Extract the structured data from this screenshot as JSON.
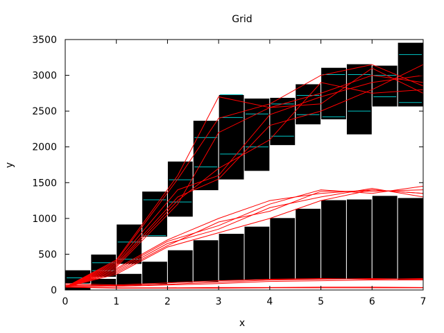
{
  "chart_data": {
    "type": "line",
    "title": "Grid",
    "xlabel": "x",
    "ylabel": "y",
    "xlim": [
      0,
      7
    ],
    "ylim": [
      0,
      3500
    ],
    "xticks": [
      "0",
      "1",
      "2",
      "3",
      "4",
      "5",
      "6",
      "7"
    ],
    "yticks": [
      "0",
      "500",
      "1000",
      "1500",
      "2000",
      "2500",
      "3000",
      "3500"
    ],
    "grid": true,
    "colors": {
      "background_bars": "#000000",
      "grid_minor": "#00c8c8",
      "series": "#ff0000",
      "bar_edge": "#ffffff"
    },
    "bars": {
      "width": 0.5,
      "columns": [
        {
          "x": 0.0,
          "segments": [
            [
              0,
              40
            ],
            [
              90,
              280
            ]
          ]
        },
        {
          "x": 0.5,
          "segments": [
            [
              60,
              160
            ],
            [
              180,
              500
            ]
          ]
        },
        {
          "x": 1.0,
          "segments": [
            [
              60,
              230
            ],
            [
              360,
              920
            ]
          ]
        },
        {
          "x": 1.5,
          "segments": [
            [
              80,
              400
            ],
            [
              740,
              1380
            ]
          ]
        },
        {
          "x": 2.0,
          "segments": [
            [
              100,
              560
            ],
            [
              1020,
              1800
            ]
          ]
        },
        {
          "x": 2.5,
          "segments": [
            [
              110,
              700
            ],
            [
              1390,
              2370
            ]
          ]
        },
        {
          "x": 3.0,
          "segments": [
            [
              130,
              790
            ],
            [
              1540,
              2730
            ]
          ]
        },
        {
          "x": 3.5,
          "segments": [
            [
              140,
              890
            ],
            [
              1660,
              2680
            ]
          ]
        },
        {
          "x": 4.0,
          "segments": [
            [
              140,
              1010
            ],
            [
              2020,
              2690
            ]
          ]
        },
        {
          "x": 4.5,
          "segments": [
            [
              140,
              1140
            ],
            [
              2310,
              2880
            ]
          ]
        },
        {
          "x": 5.0,
          "segments": [
            [
              150,
              1260
            ],
            [
              2380,
              3110
            ]
          ]
        },
        {
          "x": 5.5,
          "segments": [
            [
              150,
              1270
            ],
            [
              2170,
              3160
            ]
          ]
        },
        {
          "x": 6.0,
          "segments": [
            [
              150,
              1320
            ],
            [
              2560,
              3140
            ]
          ]
        },
        {
          "x": 6.5,
          "segments": [
            [
              140,
              1290
            ],
            [
              2560,
              3460
            ]
          ]
        }
      ]
    },
    "grid_marks": [
      {
        "x": 0.0,
        "y": [
          90,
          170
        ]
      },
      {
        "x": 0.5,
        "y": [
          270,
          380
        ]
      },
      {
        "x": 1.0,
        "y": [
          430,
          670
        ]
      },
      {
        "x": 1.5,
        "y": [
          760,
          1260
        ]
      },
      {
        "x": 2.0,
        "y": [
          1230,
          1540
        ]
      },
      {
        "x": 2.5,
        "y": [
          1720,
          2130
        ]
      },
      {
        "x": 3.0,
        "y": [
          1900,
          2410,
          2730
        ]
      },
      {
        "x": 3.5,
        "y": [
          2000,
          2460
        ]
      },
      {
        "x": 4.0,
        "y": [
          2150,
          2600
        ]
      },
      {
        "x": 4.5,
        "y": [
          2450,
          2720
        ]
      },
      {
        "x": 5.0,
        "y": [
          2420,
          3010
        ]
      },
      {
        "x": 5.5,
        "y": [
          2500,
          3010
        ]
      },
      {
        "x": 6.0,
        "y": [
          2700,
          3000
        ]
      },
      {
        "x": 6.5,
        "y": [
          2620,
          3290
        ]
      }
    ],
    "series": [
      {
        "x": [
          0,
          1,
          2.2,
          3,
          4,
          5,
          6,
          7
        ],
        "values": [
          40,
          420,
          1600,
          2700,
          2550,
          2750,
          3000,
          2900
        ]
      },
      {
        "x": [
          0,
          1,
          2.2,
          3,
          4,
          5,
          6,
          7
        ],
        "values": [
          40,
          400,
          1550,
          2400,
          2600,
          3000,
          3150,
          2850
        ]
      },
      {
        "x": [
          0,
          1,
          2.2,
          3,
          4,
          5,
          6,
          7
        ],
        "values": [
          40,
          380,
          1400,
          1600,
          2450,
          2700,
          2900,
          3000
        ]
      },
      {
        "x": [
          0,
          1,
          2.2,
          3,
          4,
          5,
          6,
          7
        ],
        "values": [
          40,
          360,
          1300,
          1550,
          2300,
          2500,
          2800,
          3150
        ]
      },
      {
        "x": [
          0,
          1,
          2.2,
          3,
          4,
          5,
          6,
          7
        ],
        "values": [
          40,
          340,
          1250,
          1700,
          2100,
          2900,
          2750,
          2800
        ]
      },
      {
        "x": [
          0,
          1,
          2.2,
          3,
          4,
          5,
          6,
          7
        ],
        "values": [
          40,
          320,
          1200,
          2200,
          2550,
          2600,
          3100,
          2750
        ]
      },
      {
        "x": [
          0,
          1,
          2,
          3,
          4,
          5,
          6,
          7
        ],
        "values": [
          40,
          300,
          700,
          1000,
          1250,
          1350,
          1400,
          1350
        ]
      },
      {
        "x": [
          0,
          1,
          2,
          3,
          4,
          5,
          6,
          7
        ],
        "values": [
          40,
          280,
          680,
          900,
          1200,
          1400,
          1350,
          1450
        ]
      },
      {
        "x": [
          0,
          1,
          2,
          3,
          4,
          5,
          6,
          7
        ],
        "values": [
          40,
          260,
          650,
          850,
          1150,
          1300,
          1420,
          1300
        ]
      },
      {
        "x": [
          0,
          1,
          2,
          3,
          4,
          5,
          6,
          7
        ],
        "values": [
          40,
          240,
          620,
          950,
          1100,
          1380,
          1380,
          1400
        ]
      },
      {
        "x": [
          0,
          1,
          2,
          3,
          4,
          5,
          6,
          7
        ],
        "values": [
          40,
          220,
          600,
          800,
          1000,
          1250,
          1400,
          1350
        ]
      },
      {
        "x": [
          0,
          1,
          2,
          3,
          4,
          5,
          6,
          7
        ],
        "values": [
          70,
          60,
          80,
          110,
          140,
          150,
          160,
          150
        ]
      },
      {
        "x": [
          0,
          1,
          2,
          3,
          4,
          5,
          6,
          7
        ],
        "values": [
          90,
          70,
          100,
          130,
          150,
          160,
          150,
          160
        ]
      },
      {
        "x": [
          0,
          1,
          2,
          3,
          4,
          5,
          6,
          7
        ],
        "values": [
          60,
          50,
          70,
          90,
          120,
          130,
          140,
          140
        ]
      },
      {
        "x": [
          0,
          1,
          2,
          3,
          4,
          5,
          6,
          7
        ],
        "values": [
          50,
          30,
          30,
          35,
          35,
          40,
          40,
          35
        ]
      },
      {
        "x": [
          0,
          1,
          2,
          3,
          4,
          5,
          6,
          7
        ],
        "values": [
          40,
          25,
          25,
          25,
          30,
          30,
          30,
          30
        ]
      }
    ]
  }
}
